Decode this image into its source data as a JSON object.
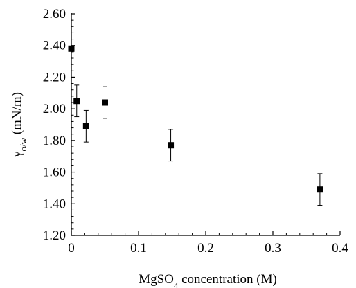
{
  "chart_data": {
    "type": "scatter",
    "xlabel": {
      "prefix": "MgSO",
      "subscript": "4",
      "suffix": " concentration (M)"
    },
    "ylabel": {
      "symbol": "γ",
      "subscript": "o/w",
      "suffix": " (mN/m)"
    },
    "xlim": [
      0,
      0.4
    ],
    "ylim": [
      1.2,
      2.6
    ],
    "x_ticks": [
      0,
      0.1,
      0.2,
      0.3,
      0.4
    ],
    "x_tick_labels": [
      "0",
      "0.1",
      "0.2",
      "0.3",
      "0.4"
    ],
    "y_ticks": [
      1.2,
      1.4,
      1.6,
      1.8,
      2.0,
      2.2,
      2.4,
      2.6
    ],
    "y_tick_labels": [
      "1.20",
      "1.40",
      "1.60",
      "1.80",
      "2.00",
      "2.20",
      "2.40",
      "2.60"
    ],
    "grid": false,
    "legend": "none",
    "marker": "filled-square",
    "marker_color": "#000000",
    "series": [
      {
        "points": [
          {
            "x": 0.0,
            "y": 2.38,
            "err": null
          },
          {
            "x": 0.008,
            "y": 2.05,
            "err": 0.1
          },
          {
            "x": 0.022,
            "y": 1.89,
            "err": 0.1
          },
          {
            "x": 0.05,
            "y": 2.04,
            "err": 0.1
          },
          {
            "x": 0.148,
            "y": 1.77,
            "err": 0.1
          },
          {
            "x": 0.37,
            "y": 1.49,
            "err": 0.1
          }
        ]
      }
    ]
  }
}
